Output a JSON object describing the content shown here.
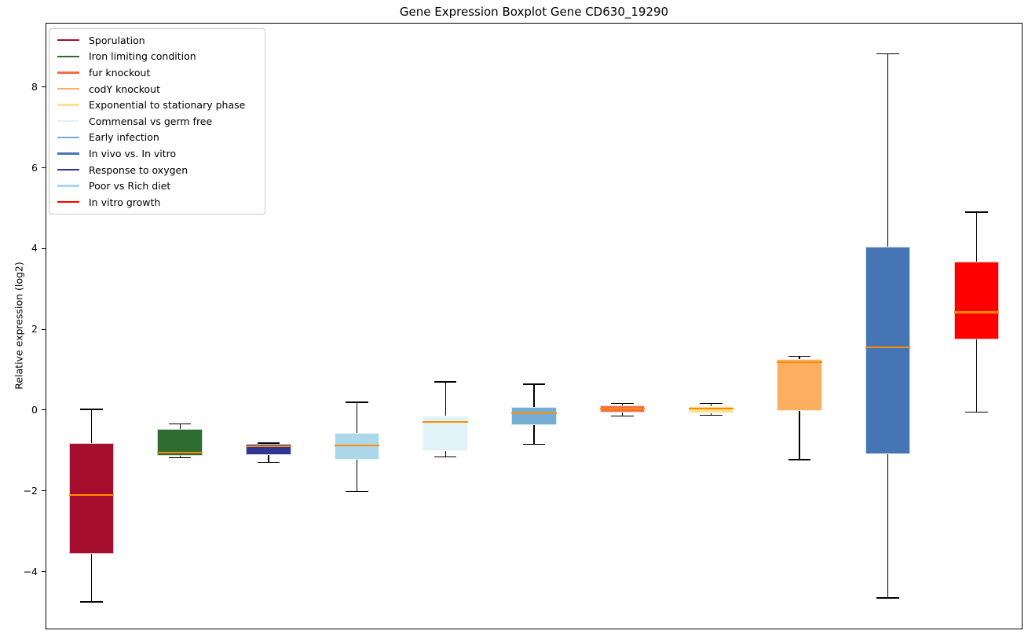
{
  "chart_data": {
    "type": "boxplot",
    "title": "Gene Expression Boxplot Gene CD630_19290",
    "xlabel": "",
    "ylabel": "Relative expression (log2)",
    "ylim": [
      -5.43,
      9.59
    ],
    "yticks": [
      8,
      6,
      4,
      2,
      0,
      -2,
      -4
    ],
    "grid": false,
    "x_tick_labels": [],
    "legend_position": "upper-left",
    "median_color": "#ff8c00",
    "whisker_color": "#000000",
    "legend": [
      {
        "label": "Sporulation",
        "color": "#a50f2d"
      },
      {
        "label": "Iron limiting condition",
        "color": "#2d6b31"
      },
      {
        "label": "fur knockout",
        "color": "#f46d43"
      },
      {
        "label": "codY knockout",
        "color": "#fdae61"
      },
      {
        "label": "Exponential to stationary phase",
        "color": "#fee090"
      },
      {
        "label": "Commensal vs germ free",
        "color": "#e0f3f8"
      },
      {
        "label": "Early infection",
        "color": "#74add1"
      },
      {
        "label": "In vivo vs. In vitro",
        "color": "#4575b4"
      },
      {
        "label": "Response to oxygen",
        "color": "#313695"
      },
      {
        "label": "Poor vs Rich diet",
        "color": "#abd9e9"
      },
      {
        "label": "In vitro growth",
        "color": "#ff0000"
      }
    ],
    "boxes": [
      {
        "condition": "Sporulation",
        "color": "#a50f2d",
        "whislo": -4.75,
        "q1": -3.57,
        "med": -2.11,
        "q3": -0.81,
        "whishi": 0.02
      },
      {
        "condition": "Iron limiting condition",
        "color": "#2d6b31",
        "whislo": -1.18,
        "q1": -1.13,
        "med": -1.06,
        "q3": -0.47,
        "whishi": -0.34
      },
      {
        "condition": "Response to oxygen",
        "color": "#313695",
        "whislo": -1.3,
        "q1": -1.12,
        "med": -0.9,
        "q3": -0.84,
        "whishi": -0.82
      },
      {
        "condition": "Poor vs Rich diet",
        "color": "#abd9e9",
        "whislo": -2.01,
        "q1": -1.22,
        "med": -0.87,
        "q3": -0.57,
        "whishi": 0.19
      },
      {
        "condition": "Commensal vs germ free",
        "color": "#e0f3f8",
        "whislo": -1.16,
        "q1": -1.01,
        "med": -0.3,
        "q3": -0.14,
        "whishi": 0.7
      },
      {
        "condition": "Early infection",
        "color": "#74add1",
        "whislo": -0.85,
        "q1": -0.37,
        "med": -0.08,
        "q3": 0.08,
        "whishi": 0.64
      },
      {
        "condition": "fur knockout",
        "color": "#f46d43",
        "whislo": -0.15,
        "q1": -0.06,
        "med": 0.04,
        "q3": 0.12,
        "whishi": 0.16
      },
      {
        "condition": "Exponential to stationary phase",
        "color": "#fee090",
        "whislo": -0.13,
        "q1": -0.08,
        "med": 0.03,
        "q3": 0.1,
        "whishi": 0.16
      },
      {
        "condition": "codY knockout",
        "color": "#fdae61",
        "whislo": -1.23,
        "q1": -0.02,
        "med": 1.19,
        "q3": 1.26,
        "whishi": 1.33
      },
      {
        "condition": "In vivo vs. In vitro",
        "color": "#4575b4",
        "whislo": -4.65,
        "q1": -1.1,
        "med": 1.55,
        "q3": 4.05,
        "whishi": 8.82
      },
      {
        "condition": "In vitro growth",
        "color": "#ff0000",
        "whislo": -0.05,
        "q1": 1.75,
        "med": 2.42,
        "q3": 3.67,
        "whishi": 4.9
      }
    ]
  }
}
